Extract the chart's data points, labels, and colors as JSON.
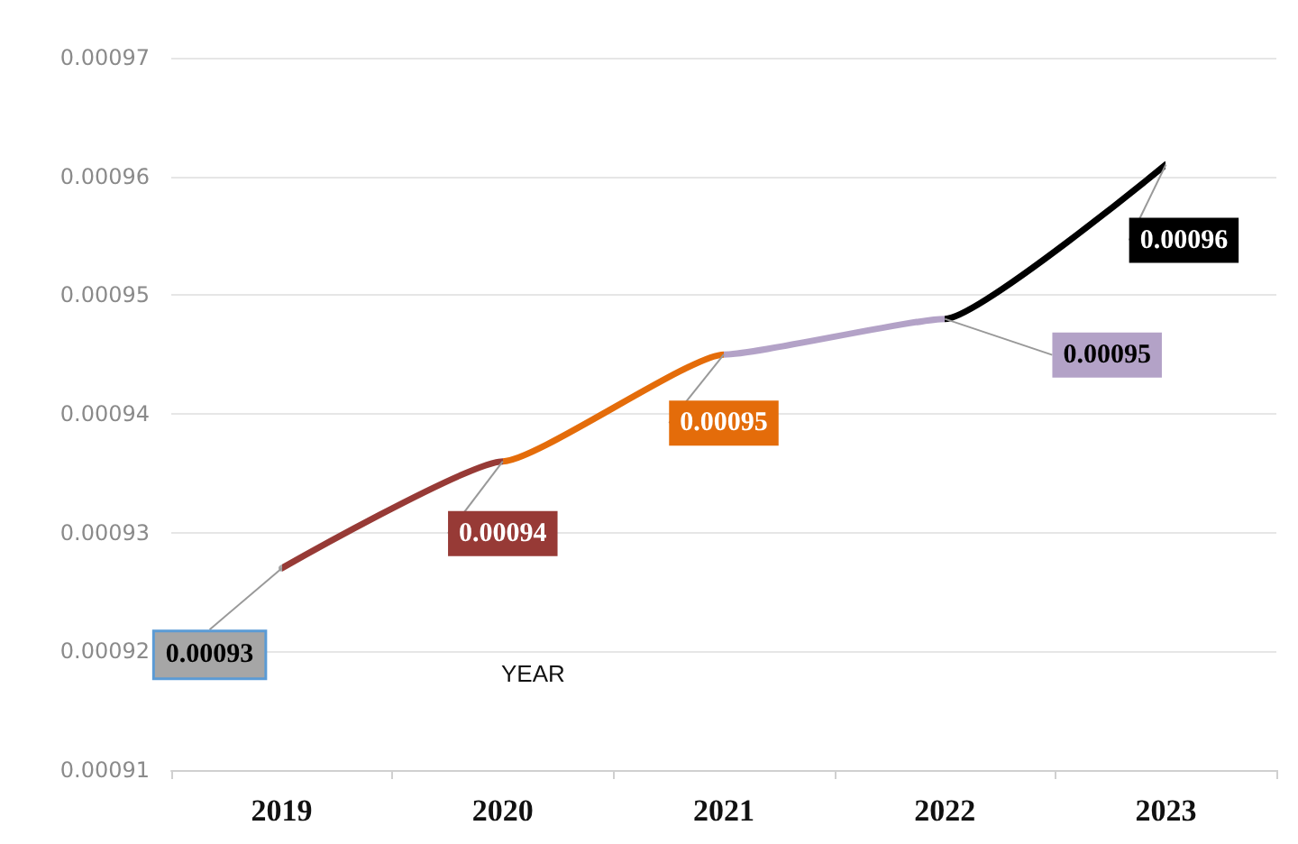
{
  "chart_data": {
    "type": "line",
    "xlabel": "YEAR",
    "categories": [
      "2019",
      "2020",
      "2021",
      "2022",
      "2023"
    ],
    "series": [
      {
        "values": [
          0.000927,
          0.000936,
          0.000945,
          0.000948,
          0.000961
        ],
        "colors": [
          "#a6a6a6",
          "#973a36",
          "#e46c0a",
          "#b3a2c7",
          "#000000"
        ],
        "value_labels": [
          "0.00093",
          "0.00094",
          "0.00095",
          "0.00095",
          "0.00096"
        ]
      }
    ],
    "ylim": [
      0.00091,
      0.00097
    ],
    "yticks": [
      0.00091,
      0.00092,
      0.00093,
      0.00094,
      0.00095,
      0.00096,
      0.00097
    ],
    "grid": "y",
    "marker": "none",
    "line_style": "solid"
  }
}
